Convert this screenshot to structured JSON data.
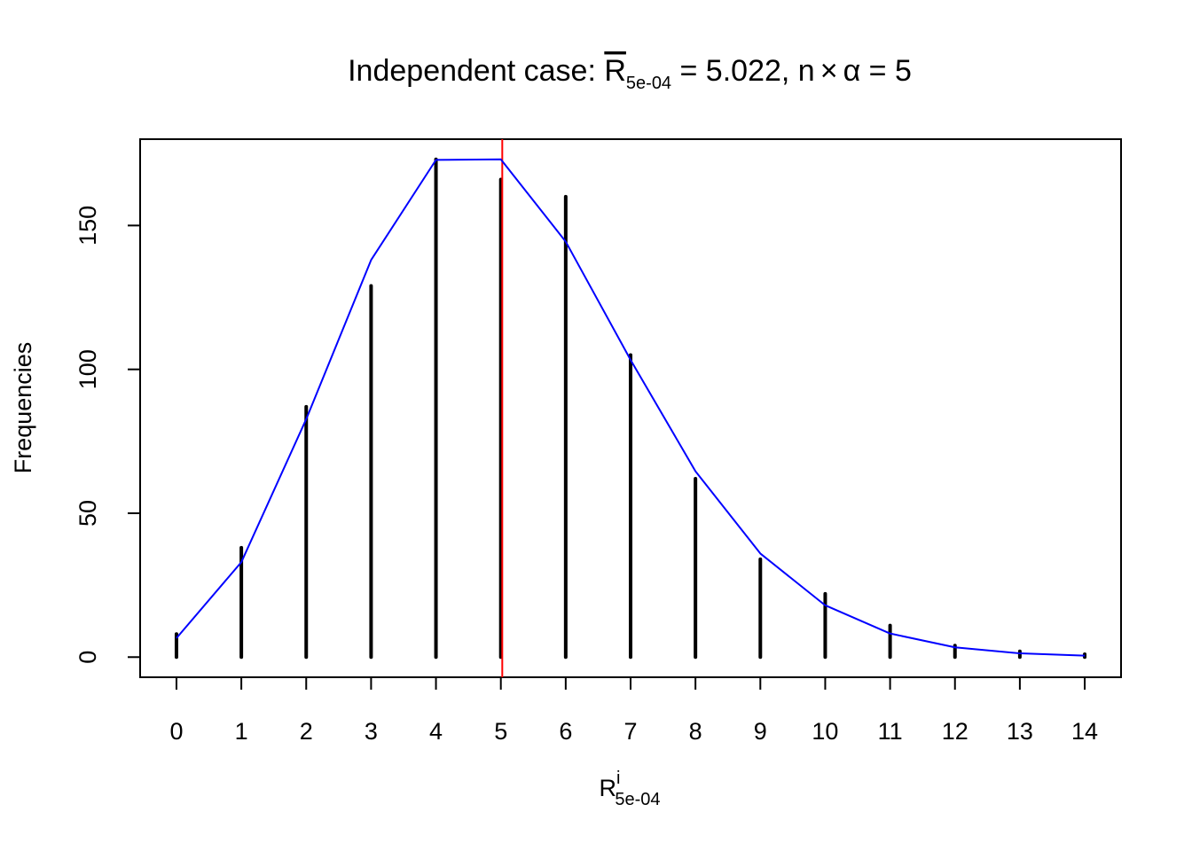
{
  "chart_data": {
    "type": "bar",
    "title": {
      "prefix": "Independent case: ",
      "rbar_symbol": "R",
      "rbar_subscript": "5e-04",
      "mean_text": " = 5.022, n",
      "times_symbol": "×",
      "alpha_symbol": "α",
      "expected_text": " = 5"
    },
    "xlabel": {
      "symbol": "R",
      "superscript": "i",
      "subscript": "5e-04"
    },
    "ylabel": "Frequencies",
    "x": [
      0,
      1,
      2,
      3,
      4,
      5,
      6,
      7,
      8,
      9,
      10,
      11,
      12,
      13,
      14
    ],
    "x_tick_labels": [
      "0",
      "1",
      "2",
      "3",
      "4",
      "5",
      "6",
      "7",
      "8",
      "9",
      "10",
      "11",
      "12",
      "13",
      "14"
    ],
    "y_tick_labels": [
      "0",
      "50",
      "100",
      "150"
    ],
    "y_ticks": [
      0,
      50,
      100,
      150
    ],
    "xlim": [
      -0.56,
      14.56
    ],
    "ylim": [
      -7,
      180
    ],
    "series": [
      {
        "kind": "spikes",
        "color": "#000000",
        "values": [
          8,
          38,
          87,
          129,
          173,
          166,
          160,
          105,
          62,
          34,
          22,
          11,
          4,
          2,
          1
        ]
      },
      {
        "kind": "line",
        "color": "#0000ff",
        "values": [
          6.6,
          33.0,
          82.7,
          138.0,
          172.8,
          173.0,
          144.4,
          103.3,
          64.6,
          36.0,
          18.0,
          8.2,
          3.4,
          1.3,
          0.5
        ]
      }
    ],
    "reference_line": {
      "x": 5.022,
      "color": "#ff0000"
    },
    "grid": false,
    "legend": "none"
  }
}
